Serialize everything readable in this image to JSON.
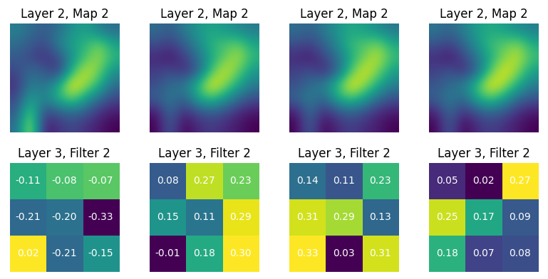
{
  "chart_data": [
    {
      "type": "image",
      "title": "Layer 2, Map 2",
      "tick_labels": false,
      "cells": [
        [
          0.45,
          0.4,
          0.35,
          0.4,
          0.5,
          0.55,
          0.45,
          0.4
        ],
        [
          0.4,
          0.35,
          0.3,
          0.45,
          0.55,
          0.6,
          0.7,
          0.55
        ],
        [
          0.35,
          0.3,
          0.25,
          0.3,
          0.5,
          0.65,
          0.75,
          0.6
        ],
        [
          0.3,
          0.4,
          0.35,
          0.25,
          0.6,
          0.8,
          0.7,
          0.5
        ],
        [
          0.25,
          0.45,
          0.4,
          0.55,
          0.85,
          0.75,
          0.6,
          0.4
        ],
        [
          0.3,
          0.55,
          0.45,
          0.6,
          0.7,
          0.55,
          0.4,
          0.3
        ],
        [
          0.35,
          0.7,
          0.3,
          0.35,
          0.4,
          0.35,
          0.25,
          0.2
        ],
        [
          0.4,
          0.8,
          0.2,
          0.25,
          0.3,
          0.25,
          0.2,
          0.15
        ]
      ]
    },
    {
      "type": "image",
      "title": "Layer 2, Map 2",
      "tick_labels": false,
      "cells": [
        [
          0.4,
          0.35,
          0.45,
          0.55,
          0.6,
          0.55,
          0.5,
          0.45
        ],
        [
          0.3,
          0.25,
          0.35,
          0.5,
          0.65,
          0.7,
          0.75,
          0.6
        ],
        [
          0.2,
          0.15,
          0.25,
          0.4,
          0.6,
          0.75,
          0.85,
          0.65
        ],
        [
          0.25,
          0.3,
          0.2,
          0.35,
          0.7,
          0.9,
          0.75,
          0.55
        ],
        [
          0.3,
          0.4,
          0.45,
          0.65,
          0.95,
          0.8,
          0.6,
          0.45
        ],
        [
          0.35,
          0.45,
          0.35,
          0.6,
          0.7,
          0.55,
          0.4,
          0.3
        ],
        [
          0.15,
          0.4,
          0.2,
          0.3,
          0.35,
          0.3,
          0.2,
          0.15
        ],
        [
          0.1,
          0.35,
          0.1,
          0.2,
          0.25,
          0.2,
          0.15,
          0.1
        ]
      ]
    },
    {
      "type": "image",
      "title": "Layer 2, Map 2",
      "tick_labels": false,
      "cells": [
        [
          0.42,
          0.38,
          0.45,
          0.55,
          0.62,
          0.58,
          0.52,
          0.45
        ],
        [
          0.32,
          0.28,
          0.38,
          0.52,
          0.68,
          0.72,
          0.78,
          0.62
        ],
        [
          0.22,
          0.18,
          0.28,
          0.42,
          0.62,
          0.78,
          0.88,
          0.68
        ],
        [
          0.28,
          0.32,
          0.22,
          0.38,
          0.72,
          0.92,
          0.78,
          0.58
        ],
        [
          0.32,
          0.42,
          0.48,
          0.68,
          0.95,
          0.82,
          0.62,
          0.48
        ],
        [
          0.38,
          0.48,
          0.38,
          0.62,
          0.72,
          0.58,
          0.42,
          0.32
        ],
        [
          0.18,
          0.42,
          0.22,
          0.32,
          0.38,
          0.32,
          0.22,
          0.18
        ],
        [
          0.12,
          0.38,
          0.12,
          0.22,
          0.28,
          0.22,
          0.18,
          0.12
        ]
      ]
    },
    {
      "type": "image",
      "title": "Layer 2, Map 2",
      "tick_labels": false,
      "cells": [
        [
          0.45,
          0.4,
          0.48,
          0.58,
          0.62,
          0.58,
          0.52,
          0.48
        ],
        [
          0.35,
          0.3,
          0.4,
          0.55,
          0.68,
          0.72,
          0.78,
          0.62
        ],
        [
          0.25,
          0.2,
          0.3,
          0.45,
          0.62,
          0.78,
          0.85,
          0.68
        ],
        [
          0.3,
          0.35,
          0.25,
          0.4,
          0.72,
          0.9,
          0.78,
          0.58
        ],
        [
          0.35,
          0.42,
          0.48,
          0.68,
          0.92,
          0.82,
          0.62,
          0.48
        ],
        [
          0.38,
          0.48,
          0.4,
          0.62,
          0.72,
          0.58,
          0.42,
          0.35
        ],
        [
          0.22,
          0.42,
          0.25,
          0.35,
          0.4,
          0.35,
          0.25,
          0.2
        ],
        [
          0.15,
          0.38,
          0.15,
          0.25,
          0.3,
          0.25,
          0.2,
          0.15
        ]
      ]
    },
    {
      "type": "heatmap",
      "title": "Layer 3, Filter 2",
      "tick_labels": false,
      "data_labels": true,
      "cells": [
        [
          -0.11,
          -0.08,
          -0.07
        ],
        [
          -0.21,
          -0.2,
          -0.33
        ],
        [
          0.02,
          -0.21,
          -0.15
        ]
      ]
    },
    {
      "type": "heatmap",
      "title": "Layer 3, Filter 2",
      "tick_labels": false,
      "data_labels": true,
      "cells": [
        [
          0.08,
          0.27,
          0.23
        ],
        [
          0.15,
          0.11,
          0.29
        ],
        [
          -0.01,
          0.18,
          0.3
        ]
      ]
    },
    {
      "type": "heatmap",
      "title": "Layer 3, Filter 2",
      "tick_labels": false,
      "data_labels": true,
      "cells": [
        [
          0.14,
          0.11,
          0.23
        ],
        [
          0.31,
          0.29,
          0.13
        ],
        [
          0.33,
          0.03,
          0.31
        ]
      ]
    },
    {
      "type": "heatmap",
      "title": "Layer 3, Filter 2",
      "tick_labels": false,
      "data_labels": true,
      "cells": [
        [
          0.05,
          0.02,
          0.27
        ],
        [
          0.25,
          0.17,
          0.09
        ],
        [
          0.18,
          0.07,
          0.08
        ]
      ]
    }
  ]
}
